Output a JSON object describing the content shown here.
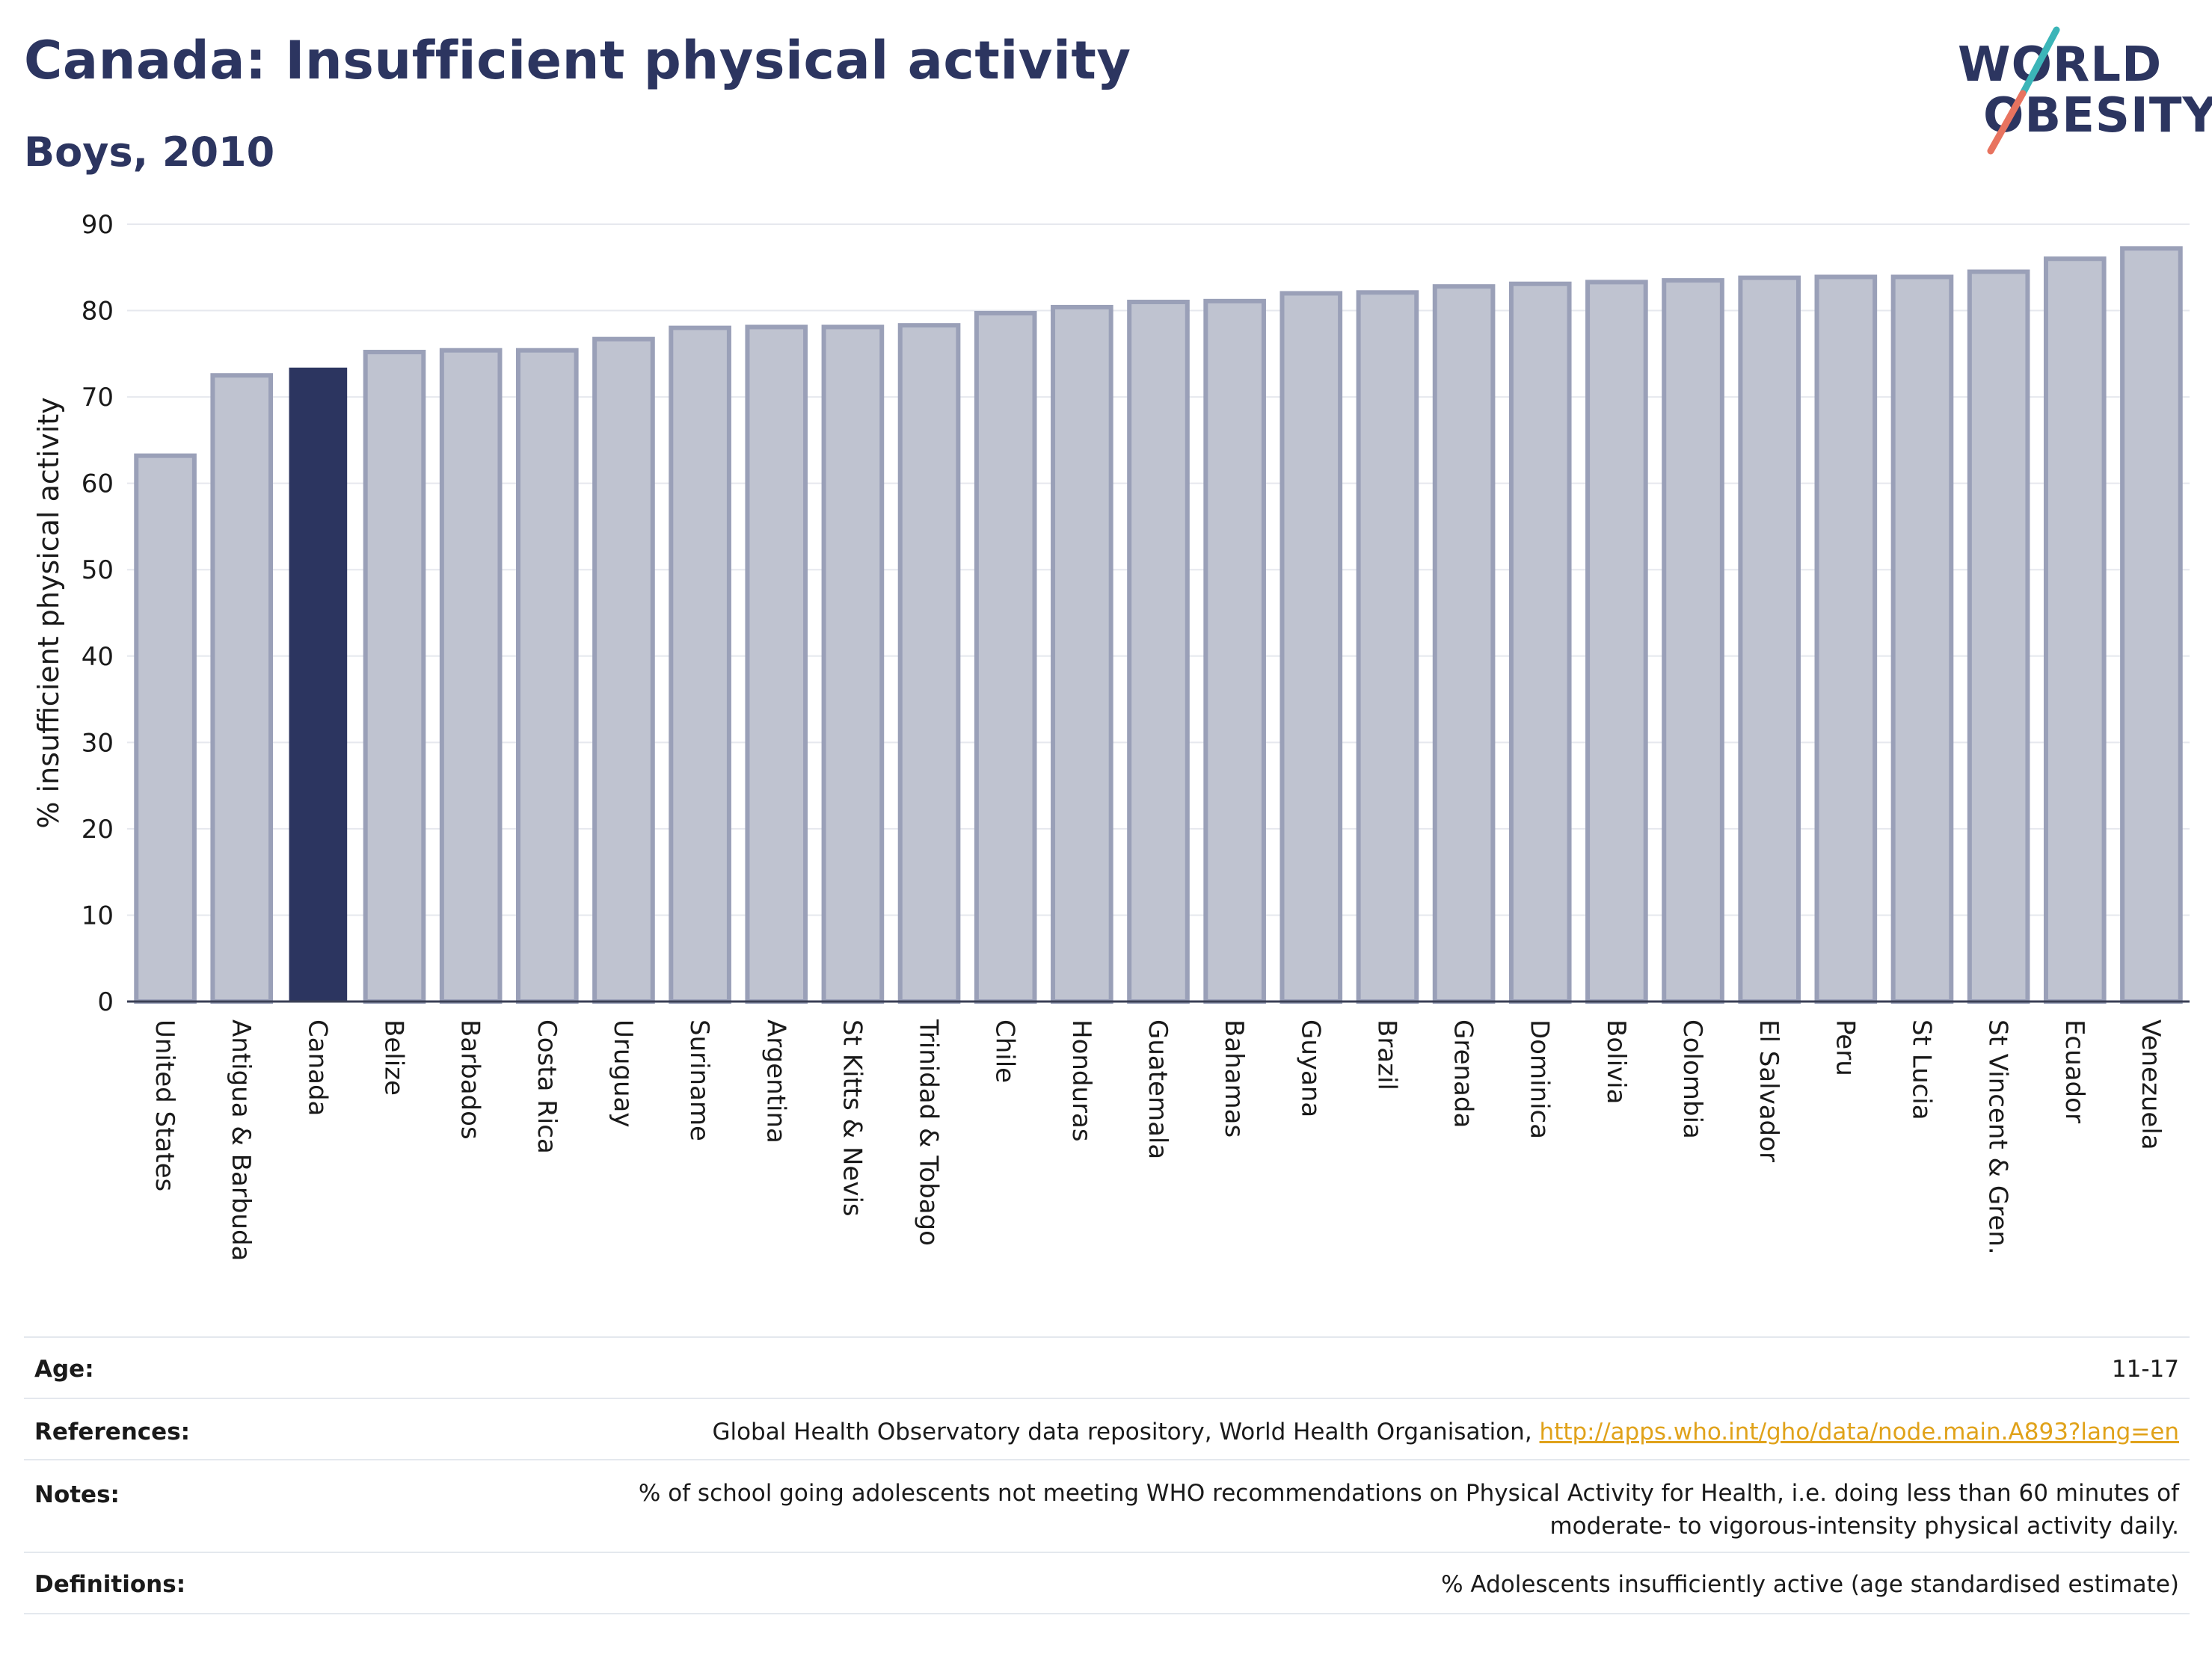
{
  "header": {
    "title": "Canada: Insufficient physical activity",
    "subtitle": "Boys, 2010"
  },
  "logo": {
    "line1": "WORLD",
    "line2": "OBESITY",
    "colors": {
      "text": "#2c3560",
      "slash_top": "#3bb5b8",
      "slash_bottom": "#e8735f"
    }
  },
  "chart_data": {
    "type": "bar",
    "ylabel": "% insufficient physical activity",
    "ylim": [
      0,
      90
    ],
    "yticks": [
      0,
      10,
      20,
      30,
      40,
      50,
      60,
      70,
      80,
      90
    ],
    "grid": true,
    "highlight": "Canada",
    "colors": {
      "bar": "#bfc3d0",
      "bar_border": "#9aa0b8",
      "highlight": "#2c3560",
      "grid": "#e6e8ee",
      "axis": "#3a3f55"
    },
    "categories": [
      "United States",
      "Antigua & Barbuda",
      "Canada",
      "Belize",
      "Barbados",
      "Costa Rica",
      "Uruguay",
      "Suriname",
      "Argentina",
      "St Kitts & Nevis",
      "Trinidad & Tobago",
      "Chile",
      "Honduras",
      "Guatemala",
      "Bahamas",
      "Guyana",
      "Brazil",
      "Grenada",
      "Dominica",
      "Bolivia",
      "Colombia",
      "El Salvador",
      "Peru",
      "St Lucia",
      "St Vincent & Gren.",
      "Ecuador",
      "Venezuela"
    ],
    "values": [
      63.2,
      72.5,
      73.4,
      75.2,
      75.4,
      75.4,
      76.7,
      78.0,
      78.1,
      78.1,
      78.3,
      79.7,
      80.4,
      81.0,
      81.1,
      82.0,
      82.1,
      82.8,
      83.1,
      83.3,
      83.5,
      83.8,
      83.9,
      83.9,
      84.5,
      86.0,
      87.2
    ]
  },
  "meta": {
    "age_label": "Age:",
    "age_value": "11-17",
    "references_label": "References:",
    "references_text": "Global Health Observatory data repository, World Health Organisation, ",
    "references_link": "http://apps.who.int/gho/data/node.main.A893?lang=en",
    "notes_label": "Notes:",
    "notes_line1": "% of school going adolescents not meeting WHO recommendations on Physical Activity for Health, i.e. doing less than 60 minutes of",
    "notes_line2": "moderate- to vigorous-intensity physical activity daily.",
    "definitions_label": "Definitions:",
    "definitions_value": "% Adolescents insufficiently active (age standardised estimate)"
  }
}
